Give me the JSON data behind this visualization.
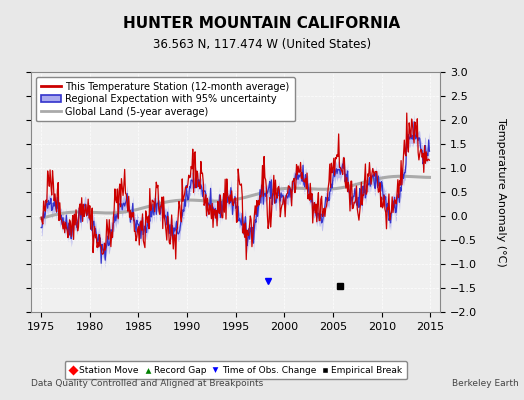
{
  "title": "HUNTER MOUNTAIN CALIFORNIA",
  "subtitle": "36.563 N, 117.474 W (United States)",
  "ylabel": "Temperature Anomaly (°C)",
  "xlabel_left": "Data Quality Controlled and Aligned at Breakpoints",
  "xlabel_right": "Berkeley Earth",
  "ylim": [
    -2,
    3
  ],
  "xlim": [
    1974,
    2016
  ],
  "xticks": [
    1975,
    1980,
    1985,
    1990,
    1995,
    2000,
    2005,
    2010,
    2015
  ],
  "yticks": [
    -2,
    -1.5,
    -1,
    -0.5,
    0,
    0.5,
    1,
    1.5,
    2,
    2.5,
    3
  ],
  "bg_color": "#e8e8e8",
  "plot_bg_color": "#f0f0f0",
  "legend_entries": [
    "This Temperature Station (12-month average)",
    "Regional Expectation with 95% uncertainty",
    "Global Land (5-year average)"
  ],
  "station_color": "#cc0000",
  "regional_color": "#3333cc",
  "regional_fill_color": "#aaaaee",
  "global_color": "#aaaaaa",
  "empirical_break_x": 2005.7,
  "empirical_break_y": -1.45,
  "time_obs_change_x": 1998.3,
  "time_obs_change_y": -1.35
}
